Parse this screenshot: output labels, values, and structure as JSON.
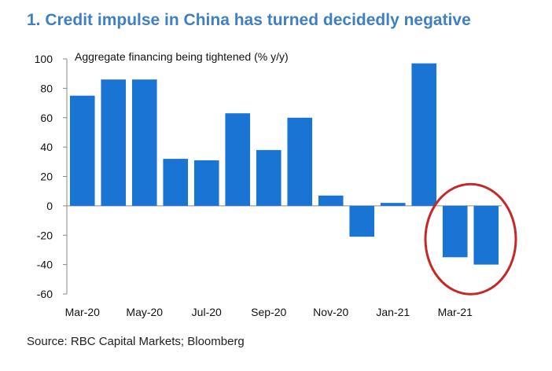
{
  "title": "1. Credit impulse in China has turned decidedly negative",
  "source": "Source: RBC Capital Markets; Bloomberg",
  "colors": {
    "bar": "#1a74d4",
    "title": "#3f7fc4",
    "highlight": "#c62828"
  },
  "chart_data": {
    "type": "bar",
    "subtitle": "Aggregate financing being tightened (% y/y)",
    "categories": [
      "Mar-20",
      "Apr-20",
      "May-20",
      "Jun-20",
      "Jul-20",
      "Aug-20",
      "Sep-20",
      "Oct-20",
      "Nov-20",
      "Dec-20",
      "Jan-21",
      "Feb-21",
      "Mar-21",
      "Apr-21"
    ],
    "tick_labels": [
      "Mar-20",
      "May-20",
      "Jul-20",
      "Sep-20",
      "Nov-20",
      "Jan-21",
      "Mar-21"
    ],
    "values": [
      75,
      86,
      86,
      32,
      31,
      63,
      38,
      60,
      7,
      -21,
      2,
      97,
      -35,
      -40
    ],
    "ylim": [
      -60,
      100
    ],
    "yticks": [
      -60,
      -40,
      -20,
      0,
      20,
      40,
      60,
      80,
      100
    ],
    "xlabel": "",
    "ylabel": "",
    "grid": false,
    "highlight_categories": [
      "Mar-21",
      "Apr-21"
    ]
  }
}
